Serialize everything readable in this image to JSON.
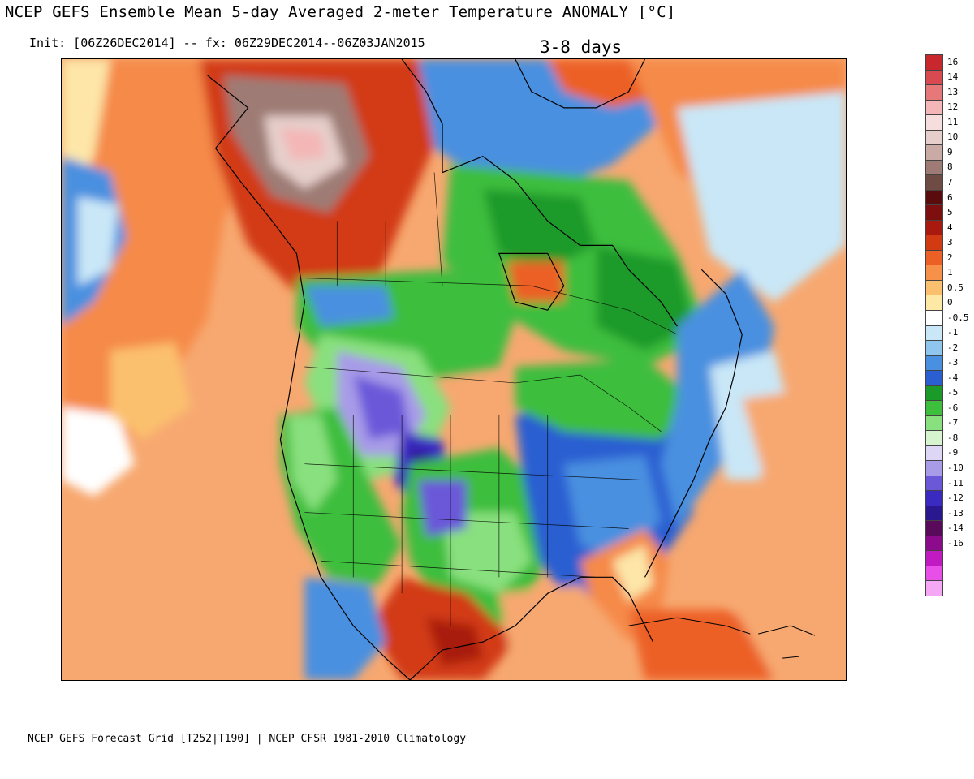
{
  "header": {
    "title": "NCEP GEFS Ensemble Mean 5-day Averaged 2-meter Temperature ANOMALY [°C]",
    "init_line": "Init: [06Z26DEC2014] -- fx: 06Z29DEC2014--06Z03JAN2015",
    "period": "3-8 days"
  },
  "footer": {
    "text": "NCEP GEFS Forecast Grid [T252|T190] | NCEP CFSR 1981-2010 Climatology"
  },
  "colorbar": {
    "unit": "°C",
    "bins": [
      {
        "label": "16",
        "color": "#c8282d"
      },
      {
        "label": "14",
        "color": "#d84a4f"
      },
      {
        "label": "13",
        "color": "#e6787a"
      },
      {
        "label": "12",
        "color": "#f4b6b6"
      },
      {
        "label": "11",
        "color": "#f7dede"
      },
      {
        "label": "10",
        "color": "#e6cfcb"
      },
      {
        "label": "9",
        "color": "#c9aaa4"
      },
      {
        "label": "8",
        "color": "#9e7c75"
      },
      {
        "label": "7",
        "color": "#6e4c44"
      },
      {
        "label": "6",
        "color": "#5a0b0b"
      },
      {
        "label": "5",
        "color": "#7e0f0f"
      },
      {
        "label": "4",
        "color": "#a81a10"
      },
      {
        "label": "3",
        "color": "#d23a12"
      },
      {
        "label": "2",
        "color": "#ec6026"
      },
      {
        "label": "1",
        "color": "#f7914a"
      },
      {
        "label": "0.5",
        "color": "#fbc06e"
      },
      {
        "label": "0",
        "color": "#fde8a6"
      },
      {
        "label": "-0.5",
        "color": "#ffffff"
      },
      {
        "label": "-1",
        "color": "#c9e7f7"
      },
      {
        "label": "-2",
        "color": "#8fc6ee"
      },
      {
        "label": "-3",
        "color": "#4a90e0"
      },
      {
        "label": "-4",
        "color": "#2a5fd1"
      },
      {
        "label": "-5",
        "color": "#1b9a2a"
      },
      {
        "label": "-6",
        "color": "#3dbe3c"
      },
      {
        "label": "-7",
        "color": "#89e07e"
      },
      {
        "label": "-8",
        "color": "#d6f5cf"
      },
      {
        "label": "-9",
        "color": "#ded6f5"
      },
      {
        "label": "-10",
        "color": "#a89be8"
      },
      {
        "label": "-11",
        "color": "#6a58d9"
      },
      {
        "label": "-12",
        "color": "#3a2ac0"
      },
      {
        "label": "-13",
        "color": "#2a1890"
      },
      {
        "label": "-14",
        "color": "#5a0a5a"
      },
      {
        "label": "-16",
        "color": "#8c0a8c"
      },
      {
        "label": "",
        "color": "#c21ac2"
      },
      {
        "label": "",
        "color": "#e84ee8"
      },
      {
        "label": "",
        "color": "#f5a6f5"
      }
    ]
  }
}
